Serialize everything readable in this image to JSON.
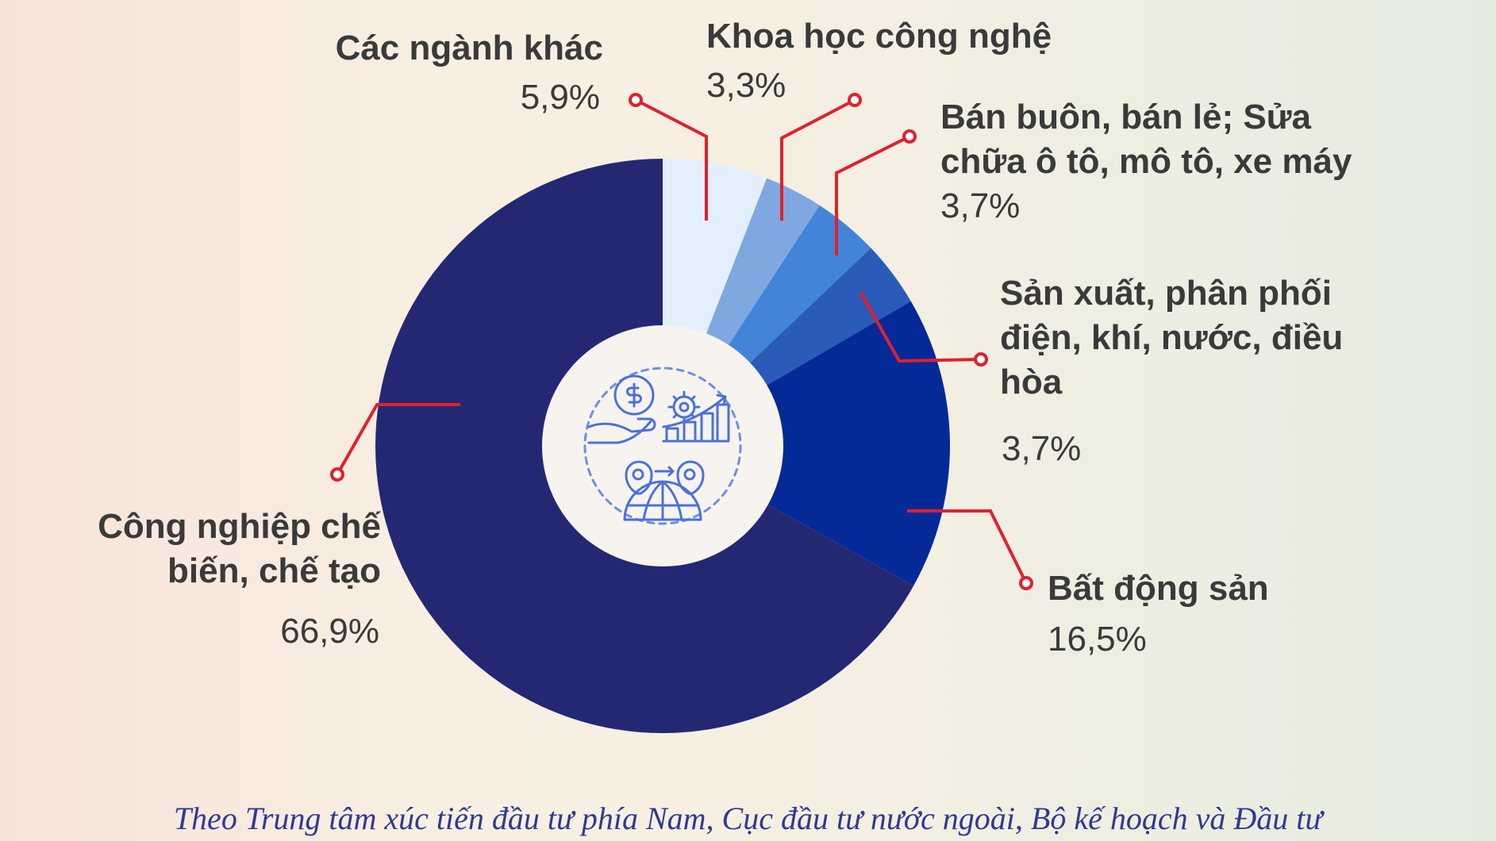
{
  "chart_data": {
    "type": "pie",
    "donut": true,
    "start_angle_deg": 0,
    "direction": "clockwise",
    "slices": [
      {
        "label_lines": [
          "Các ngành khác"
        ],
        "value": 5.9,
        "value_label": "5,9%",
        "color": "#e3effc"
      },
      {
        "label_lines": [
          "Khoa học công nghệ"
        ],
        "value": 3.3,
        "value_label": "3,3%",
        "color": "#7fa8e0"
      },
      {
        "label_lines": [
          "Bán buôn, bán lẻ; Sửa",
          "chữa ô tô, mô tô, xe máy"
        ],
        "value": 3.7,
        "value_label": "3,7%",
        "color": "#4285d8"
      },
      {
        "label_lines": [
          "Sản xuất, phân phối",
          "điện, khí, nước, điều",
          "hòa"
        ],
        "value": 3.7,
        "value_label": "3,7%",
        "color": "#2a5bb8"
      },
      {
        "label_lines": [
          "Bất động sản"
        ],
        "value": 16.5,
        "value_label": "16,5%",
        "color": "#052a98"
      },
      {
        "label_lines": [
          "Công nghiệp chế",
          "biến, chế tạo"
        ],
        "value": 66.9,
        "value_label": "66,9%",
        "color": "#242872"
      }
    ],
    "center_icon": "investment-growth-icon",
    "leader_color": "#e0202e"
  },
  "source_note": "Theo Trung tâm xúc tiến đầu tư phía Nam, Cục đầu tư nước ngoài, Bộ kế hoạch và Đầu tư"
}
